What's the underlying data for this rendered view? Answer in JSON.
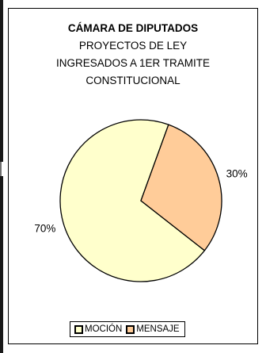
{
  "chart_data": {
    "type": "pie",
    "title": "CÁMARA DE DIPUTADOS",
    "subtitle": [
      "PROYECTOS DE LEY",
      "INGRESADOS A 1ER TRAMITE",
      "CONSTITUCIONAL"
    ],
    "categories": [
      "MOCIÓN",
      "MENSAJE"
    ],
    "values": [
      70,
      30
    ],
    "data_labels": [
      "70%",
      "30%"
    ],
    "colors": [
      "#FFFFCC",
      "#FFCC99"
    ],
    "legend": {
      "position": "bottom",
      "items": [
        "MOCIÓN",
        "MENSAJE"
      ]
    }
  }
}
